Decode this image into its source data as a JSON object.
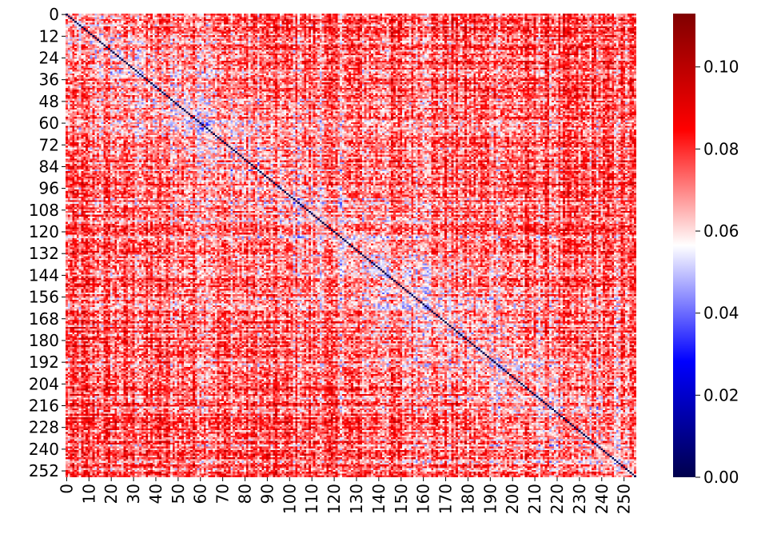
{
  "chart_data": {
    "type": "heatmap",
    "title": "",
    "xlabel": "",
    "ylabel": "",
    "n_rows": 256,
    "n_cols": 256,
    "x_tick_labels": [
      "0",
      "10",
      "20",
      "30",
      "40",
      "50",
      "60",
      "70",
      "80",
      "90",
      "100",
      "110",
      "120",
      "130",
      "140",
      "150",
      "160",
      "170",
      "180",
      "190",
      "200",
      "210",
      "220",
      "230",
      "240",
      "250"
    ],
    "x_tick_values": [
      0,
      10,
      20,
      30,
      40,
      50,
      60,
      70,
      80,
      90,
      100,
      110,
      120,
      130,
      140,
      150,
      160,
      170,
      180,
      190,
      200,
      210,
      220,
      230,
      240,
      250
    ],
    "y_tick_labels": [
      "0",
      "12",
      "24",
      "36",
      "48",
      "60",
      "72",
      "84",
      "96",
      "108",
      "120",
      "132",
      "144",
      "156",
      "168",
      "180",
      "192",
      "204",
      "216",
      "228",
      "240",
      "252"
    ],
    "y_tick_values": [
      0,
      12,
      24,
      36,
      48,
      60,
      72,
      84,
      96,
      108,
      120,
      132,
      144,
      156,
      168,
      180,
      192,
      204,
      216,
      228,
      240,
      252
    ],
    "diagonal_value": 0.0,
    "typical_offdiagonal_range": [
      0.04,
      0.095
    ],
    "colormap": "seismic",
    "colorbar": {
      "min": 0.0,
      "max": 0.113,
      "center": 0.0565,
      "tick_values": [
        0.0,
        0.02,
        0.04,
        0.06,
        0.08,
        0.1
      ],
      "tick_labels": [
        "0.00",
        "0.02",
        "0.04",
        "0.06",
        "0.08",
        "0.10"
      ],
      "stops": [
        {
          "t": 0.0,
          "color": "#00004c"
        },
        {
          "t": 0.25,
          "color": "#0000ff"
        },
        {
          "t": 0.5,
          "color": "#ffffff"
        },
        {
          "t": 0.75,
          "color": "#ff0000"
        },
        {
          "t": 1.0,
          "color": "#800000"
        }
      ]
    },
    "grid": false,
    "legend": "colorbar-right"
  }
}
